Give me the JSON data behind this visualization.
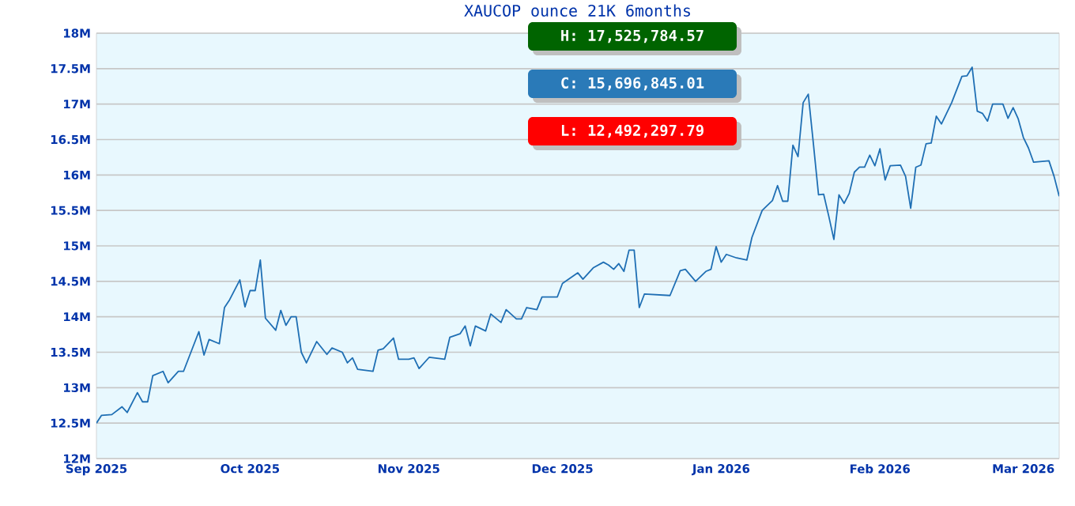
{
  "chart_data": {
    "type": "line",
    "title": "XAUCOP ounce 21K 6months",
    "x": [
      "2025-09-01",
      "2025-09-02",
      "2025-09-04",
      "2025-09-06",
      "2025-09-07",
      "2025-09-09",
      "2025-09-10",
      "2025-09-11",
      "2025-09-12",
      "2025-09-14",
      "2025-09-15",
      "2025-09-17",
      "2025-09-18",
      "2025-09-21",
      "2025-09-22",
      "2025-09-23",
      "2025-09-25",
      "2025-09-26",
      "2025-09-27",
      "2025-09-29",
      "2025-09-30",
      "2025-10-01",
      "2025-10-02",
      "2025-10-03",
      "2025-10-04",
      "2025-10-06",
      "2025-10-07",
      "2025-10-08",
      "2025-10-09",
      "2025-10-10",
      "2025-10-11",
      "2025-10-12",
      "2025-10-14",
      "2025-10-16",
      "2025-10-17",
      "2025-10-19",
      "2025-10-20",
      "2025-10-21",
      "2025-10-22",
      "2025-10-25",
      "2025-10-26",
      "2025-10-27",
      "2025-10-29",
      "2025-10-30",
      "2025-11-01",
      "2025-11-02",
      "2025-11-03",
      "2025-11-05",
      "2025-11-08",
      "2025-11-09",
      "2025-11-11",
      "2025-11-12",
      "2025-11-13",
      "2025-11-14",
      "2025-11-16",
      "2025-11-17",
      "2025-11-19",
      "2025-11-20",
      "2025-11-22",
      "2025-11-23",
      "2025-11-24",
      "2025-11-26",
      "2025-11-27",
      "2025-11-30",
      "2025-12-01",
      "2025-12-04",
      "2025-12-05",
      "2025-12-07",
      "2025-12-09",
      "2025-12-10",
      "2025-12-11",
      "2025-12-12",
      "2025-12-13",
      "2025-12-14",
      "2025-12-15",
      "2025-12-16",
      "2025-12-17",
      "2025-12-22",
      "2025-12-24",
      "2025-12-25",
      "2025-12-27",
      "2025-12-29",
      "2025-12-30",
      "2025-12-31",
      "2026-01-01",
      "2026-01-02",
      "2026-01-04",
      "2026-01-06",
      "2026-01-07",
      "2026-01-09",
      "2026-01-11",
      "2026-01-12",
      "2026-01-13",
      "2026-01-14",
      "2026-01-15",
      "2026-01-16",
      "2026-01-17",
      "2026-01-18",
      "2026-01-19",
      "2026-01-20",
      "2026-01-21",
      "2026-01-22",
      "2026-01-23",
      "2026-01-24",
      "2026-01-25",
      "2026-01-26",
      "2026-01-27",
      "2026-01-28",
      "2026-01-29",
      "2026-01-30",
      "2026-01-31",
      "2026-02-01",
      "2026-02-02",
      "2026-02-03",
      "2026-02-05",
      "2026-02-06",
      "2026-02-07",
      "2026-02-08",
      "2026-02-09",
      "2026-02-10",
      "2026-02-11",
      "2026-02-12",
      "2026-02-13",
      "2026-02-15",
      "2026-02-17",
      "2026-02-18",
      "2026-02-19",
      "2026-02-20",
      "2026-02-21",
      "2026-02-22",
      "2026-02-23",
      "2026-02-25",
      "2026-02-26",
      "2026-02-27",
      "2026-02-28",
      "2026-03-01",
      "2026-03-02",
      "2026-03-03",
      "2026-03-06",
      "2026-03-07",
      "2026-03-08"
    ],
    "series": [
      {
        "color": "#1f6fb4",
        "values": [
          12.5,
          12.61,
          12.62,
          12.73,
          12.65,
          12.93,
          12.8,
          12.8,
          13.17,
          13.23,
          13.07,
          13.23,
          13.23,
          13.79,
          13.46,
          13.68,
          13.62,
          14.13,
          14.24,
          14.52,
          14.14,
          14.37,
          14.37,
          14.8,
          13.98,
          13.81,
          14.09,
          13.88,
          14.0,
          14.0,
          13.5,
          13.35,
          13.65,
          13.47,
          13.56,
          13.5,
          13.35,
          13.42,
          13.26,
          13.23,
          13.53,
          13.55,
          13.7,
          13.4,
          13.4,
          13.42,
          13.27,
          13.43,
          13.4,
          13.71,
          13.76,
          13.87,
          13.59,
          13.87,
          13.8,
          14.04,
          13.92,
          14.1,
          13.97,
          13.97,
          14.13,
          14.1,
          14.28,
          14.28,
          14.47,
          14.62,
          14.53,
          14.69,
          14.77,
          14.73,
          14.67,
          14.75,
          14.64,
          14.94,
          14.94,
          14.13,
          14.32,
          14.3,
          14.65,
          14.67,
          14.5,
          14.64,
          14.67,
          14.99,
          14.77,
          14.88,
          14.83,
          14.8,
          15.12,
          15.5,
          15.64,
          15.85,
          15.63,
          15.63,
          16.42,
          16.26,
          17.02,
          17.14,
          16.44,
          15.72,
          15.73,
          15.42,
          15.09,
          15.72,
          15.6,
          15.74,
          16.04,
          16.11,
          16.11,
          16.28,
          16.13,
          16.37,
          15.93,
          16.13,
          16.14,
          15.98,
          15.53,
          16.11,
          16.14,
          16.44,
          16.45,
          16.83,
          16.72,
          17.02,
          17.39,
          17.4,
          17.52,
          16.9,
          16.87,
          16.76,
          17.0,
          17.0,
          16.8,
          16.95,
          16.79,
          16.53,
          16.38,
          16.18,
          16.2,
          15.98,
          15.7
        ]
      }
    ],
    "xlim": [
      "2025-09-01",
      "2026-03-08"
    ],
    "xticks": [
      {
        "value": "2025-09-01",
        "label": "Sep 2025"
      },
      {
        "value": "2025-10-01",
        "label": "Oct 2025"
      },
      {
        "value": "2025-11-01",
        "label": "Nov 2025"
      },
      {
        "value": "2025-12-01",
        "label": "Dec 2025"
      },
      {
        "value": "2026-01-01",
        "label": "Jan 2026"
      },
      {
        "value": "2026-02-01",
        "label": "Feb 2026"
      },
      {
        "value": "2026-03-01",
        "label": "Mar 2026"
      }
    ],
    "ylim": [
      12,
      18
    ],
    "yticks": [
      {
        "value": 12,
        "label": "12M"
      },
      {
        "value": 12.5,
        "label": "12.5M"
      },
      {
        "value": 13,
        "label": "13M"
      },
      {
        "value": 13.5,
        "label": "13.5M"
      },
      {
        "value": 14,
        "label": "14M"
      },
      {
        "value": 14.5,
        "label": "14.5M"
      },
      {
        "value": 15,
        "label": "15M"
      },
      {
        "value": 15.5,
        "label": "15.5M"
      },
      {
        "value": 16,
        "label": "16M"
      },
      {
        "value": 16.5,
        "label": "16.5M"
      },
      {
        "value": 17,
        "label": "17M"
      },
      {
        "value": 17.5,
        "label": "17.5M"
      },
      {
        "value": 18,
        "label": "18M"
      }
    ],
    "grid": "y",
    "marker": "none",
    "line_style": "solid",
    "annotations": [
      "H: 17,525,784.57",
      "C: 15,696,845.01",
      "L: 12,492,297.79"
    ]
  }
}
